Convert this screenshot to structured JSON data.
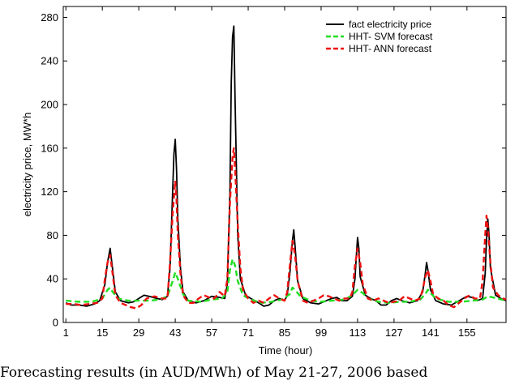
{
  "caption": "Forecasting results (in AUD/MWh) of May 21-27, 2006 based",
  "chart_data": {
    "type": "line",
    "title": "",
    "xlabel": "Time (hour)",
    "ylabel": "electricity price, MW*h",
    "xlim": [
      0,
      170
    ],
    "ylim": [
      0,
      290
    ],
    "xticks": [
      1,
      15,
      29,
      43,
      57,
      71,
      85,
      99,
      113,
      127,
      141,
      155
    ],
    "yticks": [
      0,
      40,
      80,
      120,
      160,
      200,
      240,
      280
    ],
    "legend_position": "top-right",
    "series": [
      {
        "name": "fact electricity price",
        "color": "#000000",
        "style": "solid",
        "points": [
          [
            1,
            18
          ],
          [
            3,
            16
          ],
          [
            6,
            16
          ],
          [
            9,
            15
          ],
          [
            12,
            17
          ],
          [
            14,
            20
          ],
          [
            16,
            35
          ],
          [
            17,
            55
          ],
          [
            18,
            68
          ],
          [
            19,
            48
          ],
          [
            20,
            28
          ],
          [
            22,
            20
          ],
          [
            25,
            18
          ],
          [
            27,
            19
          ],
          [
            29,
            22
          ],
          [
            31,
            25
          ],
          [
            33,
            24
          ],
          [
            36,
            22
          ],
          [
            38,
            21
          ],
          [
            40,
            24
          ],
          [
            41,
            50
          ],
          [
            42,
            120
          ],
          [
            42.5,
            155
          ],
          [
            43,
            168
          ],
          [
            43.5,
            140
          ],
          [
            44,
            95
          ],
          [
            45,
            50
          ],
          [
            46,
            28
          ],
          [
            48,
            20
          ],
          [
            51,
            18
          ],
          [
            54,
            20
          ],
          [
            57,
            24
          ],
          [
            60,
            23
          ],
          [
            62,
            22
          ],
          [
            63,
            35
          ],
          [
            64,
            120
          ],
          [
            64.5,
            220
          ],
          [
            65,
            262
          ],
          [
            65.5,
            272
          ],
          [
            66,
            200
          ],
          [
            66.5,
            140
          ],
          [
            67,
            80
          ],
          [
            68,
            40
          ],
          [
            70,
            25
          ],
          [
            72,
            22
          ],
          [
            75,
            18
          ],
          [
            77,
            15
          ],
          [
            79,
            16
          ],
          [
            81,
            20
          ],
          [
            83,
            22
          ],
          [
            85,
            20
          ],
          [
            86,
            25
          ],
          [
            87,
            45
          ],
          [
            88,
            75
          ],
          [
            88.5,
            85
          ],
          [
            89,
            70
          ],
          [
            90,
            38
          ],
          [
            92,
            22
          ],
          [
            95,
            18
          ],
          [
            98,
            17
          ],
          [
            101,
            20
          ],
          [
            103,
            22
          ],
          [
            105,
            23
          ],
          [
            107,
            20
          ],
          [
            109,
            20
          ],
          [
            111,
            24
          ],
          [
            112,
            40
          ],
          [
            112.5,
            60
          ],
          [
            113,
            78
          ],
          [
            113.5,
            68
          ],
          [
            114,
            42
          ],
          [
            116,
            25
          ],
          [
            118,
            22
          ],
          [
            120,
            20
          ],
          [
            122,
            16
          ],
          [
            124,
            16
          ],
          [
            126,
            20
          ],
          [
            128,
            22
          ],
          [
            130,
            20
          ],
          [
            133,
            18
          ],
          [
            136,
            20
          ],
          [
            138,
            28
          ],
          [
            139,
            45
          ],
          [
            139.5,
            55
          ],
          [
            140,
            48
          ],
          [
            141,
            30
          ],
          [
            143,
            20
          ],
          [
            146,
            17
          ],
          [
            149,
            16
          ],
          [
            152,
            20
          ],
          [
            155,
            24
          ],
          [
            157,
            23
          ],
          [
            159,
            20
          ],
          [
            161,
            22
          ],
          [
            162,
            45
          ],
          [
            162.5,
            75
          ],
          [
            163,
            95
          ],
          [
            163.5,
            80
          ],
          [
            164,
            50
          ],
          [
            166,
            25
          ],
          [
            168,
            22
          ],
          [
            170,
            20
          ]
        ]
      },
      {
        "name": "HHT- SVM forecast",
        "color": "#22dd22",
        "style": "dashed",
        "points": [
          [
            1,
            20
          ],
          [
            6,
            19
          ],
          [
            11,
            19
          ],
          [
            15,
            22
          ],
          [
            17,
            30
          ],
          [
            18,
            32
          ],
          [
            19,
            28
          ],
          [
            21,
            22
          ],
          [
            25,
            20
          ],
          [
            29,
            20
          ],
          [
            33,
            20
          ],
          [
            37,
            21
          ],
          [
            40,
            24
          ],
          [
            42,
            38
          ],
          [
            43,
            46
          ],
          [
            44,
            40
          ],
          [
            46,
            26
          ],
          [
            48,
            20
          ],
          [
            53,
            19
          ],
          [
            57,
            21
          ],
          [
            61,
            22
          ],
          [
            63,
            28
          ],
          [
            64,
            48
          ],
          [
            65,
            58
          ],
          [
            66,
            52
          ],
          [
            67,
            38
          ],
          [
            69,
            25
          ],
          [
            72,
            21
          ],
          [
            76,
            18
          ],
          [
            80,
            19
          ],
          [
            84,
            21
          ],
          [
            87,
            26
          ],
          [
            88,
            32
          ],
          [
            89,
            30
          ],
          [
            91,
            24
          ],
          [
            95,
            20
          ],
          [
            99,
            19
          ],
          [
            103,
            20
          ],
          [
            108,
            21
          ],
          [
            111,
            25
          ],
          [
            113,
            30
          ],
          [
            115,
            27
          ],
          [
            117,
            22
          ],
          [
            121,
            19
          ],
          [
            125,
            18
          ],
          [
            129,
            19
          ],
          [
            133,
            19
          ],
          [
            137,
            21
          ],
          [
            139,
            26
          ],
          [
            140,
            30
          ],
          [
            141,
            27
          ],
          [
            143,
            22
          ],
          [
            148,
            19
          ],
          [
            153,
            19
          ],
          [
            157,
            20
          ],
          [
            161,
            21
          ],
          [
            163,
            24
          ],
          [
            165,
            23
          ],
          [
            170,
            20
          ]
        ]
      },
      {
        "name": "HHT- ANN forecast",
        "color": "#ee1111",
        "style": "dashed",
        "points": [
          [
            1,
            17
          ],
          [
            4,
            17
          ],
          [
            7,
            16
          ],
          [
            10,
            17
          ],
          [
            13,
            18
          ],
          [
            15,
            22
          ],
          [
            16,
            40
          ],
          [
            17,
            55
          ],
          [
            18,
            62
          ],
          [
            19,
            44
          ],
          [
            20,
            25
          ],
          [
            22,
            18
          ],
          [
            24,
            16
          ],
          [
            26,
            14
          ],
          [
            28,
            13
          ],
          [
            30,
            16
          ],
          [
            32,
            22
          ],
          [
            35,
            24
          ],
          [
            38,
            22
          ],
          [
            40,
            22
          ],
          [
            41,
            55
          ],
          [
            42,
            100
          ],
          [
            43,
            130
          ],
          [
            43.5,
            112
          ],
          [
            44,
            80
          ],
          [
            45,
            45
          ],
          [
            46,
            25
          ],
          [
            48,
            18
          ],
          [
            50,
            18
          ],
          [
            52,
            22
          ],
          [
            54,
            25
          ],
          [
            56,
            23
          ],
          [
            58,
            22
          ],
          [
            60,
            28
          ],
          [
            62,
            24
          ],
          [
            63,
            40
          ],
          [
            64,
            110
          ],
          [
            65,
            152
          ],
          [
            65.5,
            160
          ],
          [
            66,
            140
          ],
          [
            67,
            90
          ],
          [
            68,
            50
          ],
          [
            69,
            30
          ],
          [
            71,
            22
          ],
          [
            73,
            18
          ],
          [
            75,
            20
          ],
          [
            77,
            18
          ],
          [
            79,
            22
          ],
          [
            81,
            25
          ],
          [
            83,
            22
          ],
          [
            85,
            20
          ],
          [
            86,
            28
          ],
          [
            87,
            52
          ],
          [
            88,
            75
          ],
          [
            89,
            62
          ],
          [
            90,
            38
          ],
          [
            92,
            20
          ],
          [
            94,
            18
          ],
          [
            96,
            20
          ],
          [
            98,
            22
          ],
          [
            100,
            25
          ],
          [
            102,
            24
          ],
          [
            104,
            22
          ],
          [
            106,
            20
          ],
          [
            108,
            22
          ],
          [
            110,
            22
          ],
          [
            111,
            28
          ],
          [
            112,
            52
          ],
          [
            113,
            68
          ],
          [
            114,
            55
          ],
          [
            115,
            35
          ],
          [
            117,
            22
          ],
          [
            119,
            20
          ],
          [
            121,
            22
          ],
          [
            123,
            20
          ],
          [
            125,
            18
          ],
          [
            127,
            19
          ],
          [
            129,
            20
          ],
          [
            131,
            24
          ],
          [
            133,
            22
          ],
          [
            135,
            20
          ],
          [
            137,
            22
          ],
          [
            138,
            30
          ],
          [
            139,
            42
          ],
          [
            140,
            48
          ],
          [
            141,
            38
          ],
          [
            142,
            26
          ],
          [
            144,
            22
          ],
          [
            146,
            20
          ],
          [
            148,
            16
          ],
          [
            150,
            14
          ],
          [
            152,
            18
          ],
          [
            154,
            22
          ],
          [
            156,
            25
          ],
          [
            158,
            22
          ],
          [
            160,
            22
          ],
          [
            161,
            38
          ],
          [
            162,
            80
          ],
          [
            162.5,
            98
          ],
          [
            163,
            88
          ],
          [
            164,
            55
          ],
          [
            165,
            32
          ],
          [
            167,
            25
          ],
          [
            169,
            22
          ],
          [
            170,
            21
          ]
        ]
      }
    ]
  }
}
